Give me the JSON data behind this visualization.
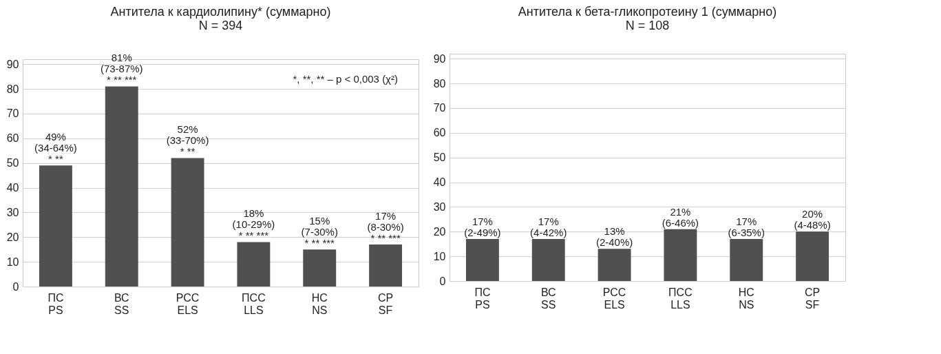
{
  "chart_data": [
    {
      "type": "bar",
      "title": "Антитела к кардиолипину* (суммарно)",
      "subtitle": "N = 394",
      "categories": [
        "ПС\nPS",
        "ВС\nSS",
        "РСС\nELS",
        "ПСС\nLLS",
        "НС\nNS",
        "СР\nSF"
      ],
      "values": [
        49,
        81,
        52,
        18,
        15,
        17
      ],
      "value_labels": [
        "49%\n(34-64%)\n* **",
        "81%\n(73-87%)\n* ** ***",
        "52%\n(33-70%)\n* **",
        "18%\n(10-29%)\n* ** ***",
        "15%\n(7-30%)\n* ** ***",
        "17%\n(8-30%)\n* ** ***"
      ],
      "color": "#505050",
      "ylim": [
        0,
        92
      ],
      "yticks": [
        0,
        10,
        20,
        30,
        40,
        50,
        60,
        70,
        80,
        90
      ],
      "grid": "y",
      "annotations": [
        "*, **, ** – p < 0,003 (χ²)"
      ]
    },
    {
      "type": "bar",
      "title": "Антитела к бета-гликопротеину 1 (суммарно)",
      "subtitle": "N = 108",
      "categories": [
        "ПС\nPS",
        "ВС\nSS",
        "РСС\nELS",
        "ПСС\nLLS",
        "НС\nNS",
        "СР\nSF"
      ],
      "values": [
        17,
        17,
        13,
        21,
        17,
        20
      ],
      "value_labels": [
        "17%\n(2-49%)",
        "17%\n(4-42%)",
        "13%\n(2-40%)",
        "21%\n(6-46%)",
        "17%\n(6-35%)",
        "20%\n(4-48%)"
      ],
      "color": "#505050",
      "ylim": [
        0,
        92
      ],
      "yticks": [
        0,
        10,
        20,
        30,
        40,
        50,
        60,
        70,
        80,
        90
      ],
      "grid": "y"
    }
  ]
}
